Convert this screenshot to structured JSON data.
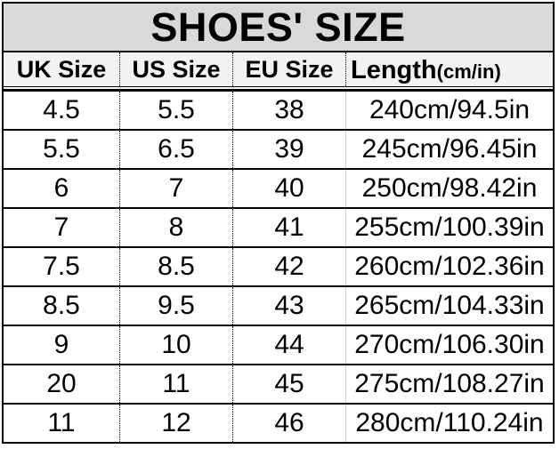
{
  "title": "SHOES' SIZE",
  "table": {
    "headers": {
      "uk": "UK Size",
      "us": "US Size",
      "eu": "EU Size",
      "length": "Length",
      "length_unit": "(cm/in)"
    },
    "rows": [
      {
        "uk": "4.5",
        "us": "5.5",
        "eu": "38",
        "length": "240cm/94.5in"
      },
      {
        "uk": "5.5",
        "us": "6.5",
        "eu": "39",
        "length": "245cm/96.45in"
      },
      {
        "uk": "6",
        "us": "7",
        "eu": "40",
        "length": "250cm/98.42in"
      },
      {
        "uk": "7",
        "us": "8",
        "eu": "41",
        "length": "255cm/100.39in"
      },
      {
        "uk": "7.5",
        "us": "8.5",
        "eu": "42",
        "length": "260cm/102.36in"
      },
      {
        "uk": "8.5",
        "us": "9.5",
        "eu": "43",
        "length": "265cm/104.33in"
      },
      {
        "uk": "9",
        "us": "10",
        "eu": "44",
        "length": "270cm/106.30in"
      },
      {
        "uk": "20",
        "us": "11",
        "eu": "45",
        "length": "275cm/108.27in"
      },
      {
        "uk": "11",
        "us": "12",
        "eu": "46",
        "length": "280cm/110.24in"
      }
    ]
  },
  "colors": {
    "title_bg": "#d9d9d9",
    "header_bg": "#f2f2f2",
    "row_bg": "#ffffff",
    "border": "#000000",
    "gridline": "#c8c8c8"
  }
}
